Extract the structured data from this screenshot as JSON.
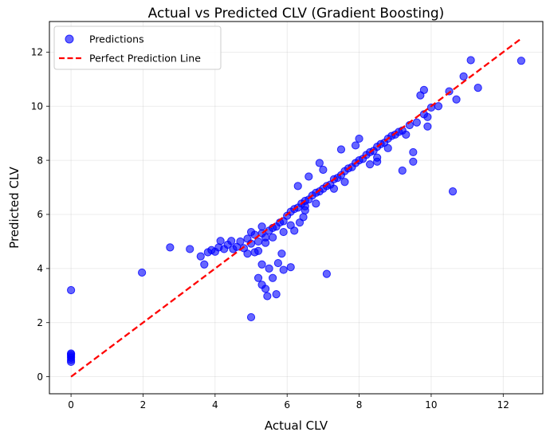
{
  "chart_data": {
    "type": "scatter",
    "title": "Actual vs Predicted CLV (Gradient Boosting)",
    "xlabel": "Actual CLV",
    "ylabel": "Predicted CLV",
    "xlim": [
      -0.6,
      13.1
    ],
    "ylim": [
      -0.63,
      13.13
    ],
    "xticks": [
      0,
      2,
      4,
      6,
      8,
      10,
      12
    ],
    "yticks": [
      0,
      2,
      4,
      6,
      8,
      10,
      12
    ],
    "grid": true,
    "legend_position": "top-left",
    "colors": {
      "points": "#0000ff",
      "line": "#ff0000"
    },
    "series": [
      {
        "name": "Predictions",
        "kind": "scatter",
        "points": [
          [
            0,
            3.2
          ],
          [
            0,
            0.55
          ],
          [
            0,
            0.62
          ],
          [
            0,
            0.7
          ],
          [
            0,
            0.76
          ],
          [
            0,
            0.82
          ],
          [
            0,
            0.86
          ],
          [
            1.97,
            3.85
          ],
          [
            2.75,
            4.78
          ],
          [
            3.3,
            4.72
          ],
          [
            3.6,
            4.45
          ],
          [
            3.7,
            4.15
          ],
          [
            3.8,
            4.6
          ],
          [
            3.9,
            4.68
          ],
          [
            4.0,
            4.62
          ],
          [
            4.1,
            4.78
          ],
          [
            4.15,
            5.02
          ],
          [
            4.25,
            4.72
          ],
          [
            4.35,
            4.88
          ],
          [
            4.45,
            5.02
          ],
          [
            4.5,
            4.72
          ],
          [
            4.6,
            4.8
          ],
          [
            4.7,
            5.0
          ],
          [
            4.8,
            4.75
          ],
          [
            4.9,
            5.1
          ],
          [
            5.0,
            4.92
          ],
          [
            5.1,
            5.25
          ],
          [
            5.2,
            5.0
          ],
          [
            5.3,
            5.3
          ],
          [
            5.4,
            5.15
          ],
          [
            5.5,
            5.4
          ],
          [
            5.6,
            5.5
          ],
          [
            5.7,
            5.55
          ],
          [
            5.8,
            5.7
          ],
          [
            5.9,
            5.75
          ],
          [
            6.0,
            5.95
          ],
          [
            6.1,
            6.1
          ],
          [
            6.2,
            6.2
          ],
          [
            6.3,
            6.25
          ],
          [
            6.4,
            6.4
          ],
          [
            6.5,
            6.5
          ],
          [
            6.6,
            6.55
          ],
          [
            6.7,
            6.7
          ],
          [
            6.8,
            6.8
          ],
          [
            6.9,
            6.85
          ],
          [
            7.0,
            6.95
          ],
          [
            7.1,
            7.05
          ],
          [
            7.2,
            7.1
          ],
          [
            7.3,
            7.3
          ],
          [
            7.4,
            7.35
          ],
          [
            7.5,
            7.45
          ],
          [
            7.6,
            7.6
          ],
          [
            7.7,
            7.7
          ],
          [
            7.8,
            7.75
          ],
          [
            7.9,
            7.9
          ],
          [
            8.0,
            8.0
          ],
          [
            8.1,
            8.05
          ],
          [
            8.2,
            8.2
          ],
          [
            8.3,
            8.3
          ],
          [
            8.4,
            8.35
          ],
          [
            8.5,
            8.5
          ],
          [
            8.6,
            8.6
          ],
          [
            8.7,
            8.65
          ],
          [
            8.8,
            8.8
          ],
          [
            8.9,
            8.9
          ],
          [
            9.0,
            8.95
          ],
          [
            9.1,
            9.05
          ],
          [
            9.2,
            9.1
          ],
          [
            9.4,
            9.3
          ],
          [
            9.6,
            9.4
          ],
          [
            9.8,
            9.7
          ],
          [
            9.9,
            9.6
          ],
          [
            5.2,
            3.65
          ],
          [
            5.3,
            3.4
          ],
          [
            5.4,
            3.25
          ],
          [
            5.45,
            2.98
          ],
          [
            5.0,
            2.2
          ],
          [
            5.7,
            3.05
          ],
          [
            5.6,
            3.65
          ],
          [
            5.9,
            3.95
          ],
          [
            6.1,
            4.05
          ],
          [
            5.5,
            4.0
          ],
          [
            5.3,
            4.15
          ],
          [
            5.75,
            4.2
          ],
          [
            5.85,
            4.55
          ],
          [
            5.2,
            4.65
          ],
          [
            7.1,
            3.8
          ],
          [
            10.6,
            6.85
          ],
          [
            9.2,
            7.62
          ],
          [
            9.5,
            7.95
          ],
          [
            9.5,
            8.3
          ],
          [
            9.9,
            9.25
          ],
          [
            10.0,
            9.95
          ],
          [
            10.5,
            10.55
          ],
          [
            10.7,
            10.25
          ],
          [
            11.1,
            11.7
          ],
          [
            10.9,
            11.1
          ],
          [
            11.3,
            10.68
          ],
          [
            12.5,
            11.68
          ],
          [
            9.7,
            10.4
          ],
          [
            9.8,
            10.6
          ],
          [
            10.2,
            10.0
          ],
          [
            6.8,
            6.4
          ],
          [
            7.3,
            6.95
          ],
          [
            7.6,
            7.2
          ],
          [
            6.5,
            6.15
          ],
          [
            6.3,
            7.05
          ],
          [
            6.6,
            7.4
          ],
          [
            7.0,
            7.65
          ],
          [
            6.9,
            7.9
          ],
          [
            7.5,
            8.4
          ],
          [
            8.5,
            8.1
          ],
          [
            8.3,
            7.85
          ],
          [
            8.5,
            7.95
          ],
          [
            7.9,
            8.55
          ],
          [
            8.8,
            8.45
          ],
          [
            9.3,
            8.95
          ],
          [
            8.0,
            8.8
          ],
          [
            6.2,
            5.4
          ],
          [
            6.35,
            5.7
          ],
          [
            6.45,
            5.9
          ],
          [
            6.5,
            6.3
          ],
          [
            6.1,
            5.6
          ],
          [
            5.9,
            5.35
          ],
          [
            5.6,
            5.15
          ],
          [
            5.4,
            4.95
          ],
          [
            4.9,
            4.55
          ],
          [
            5.1,
            4.6
          ],
          [
            5.3,
            5.55
          ],
          [
            5.0,
            5.35
          ]
        ]
      },
      {
        "name": "Perfect Prediction Line",
        "kind": "line",
        "style": "dashed",
        "x": [
          0,
          12.5
        ],
        "y": [
          0,
          12.5
        ]
      }
    ]
  }
}
